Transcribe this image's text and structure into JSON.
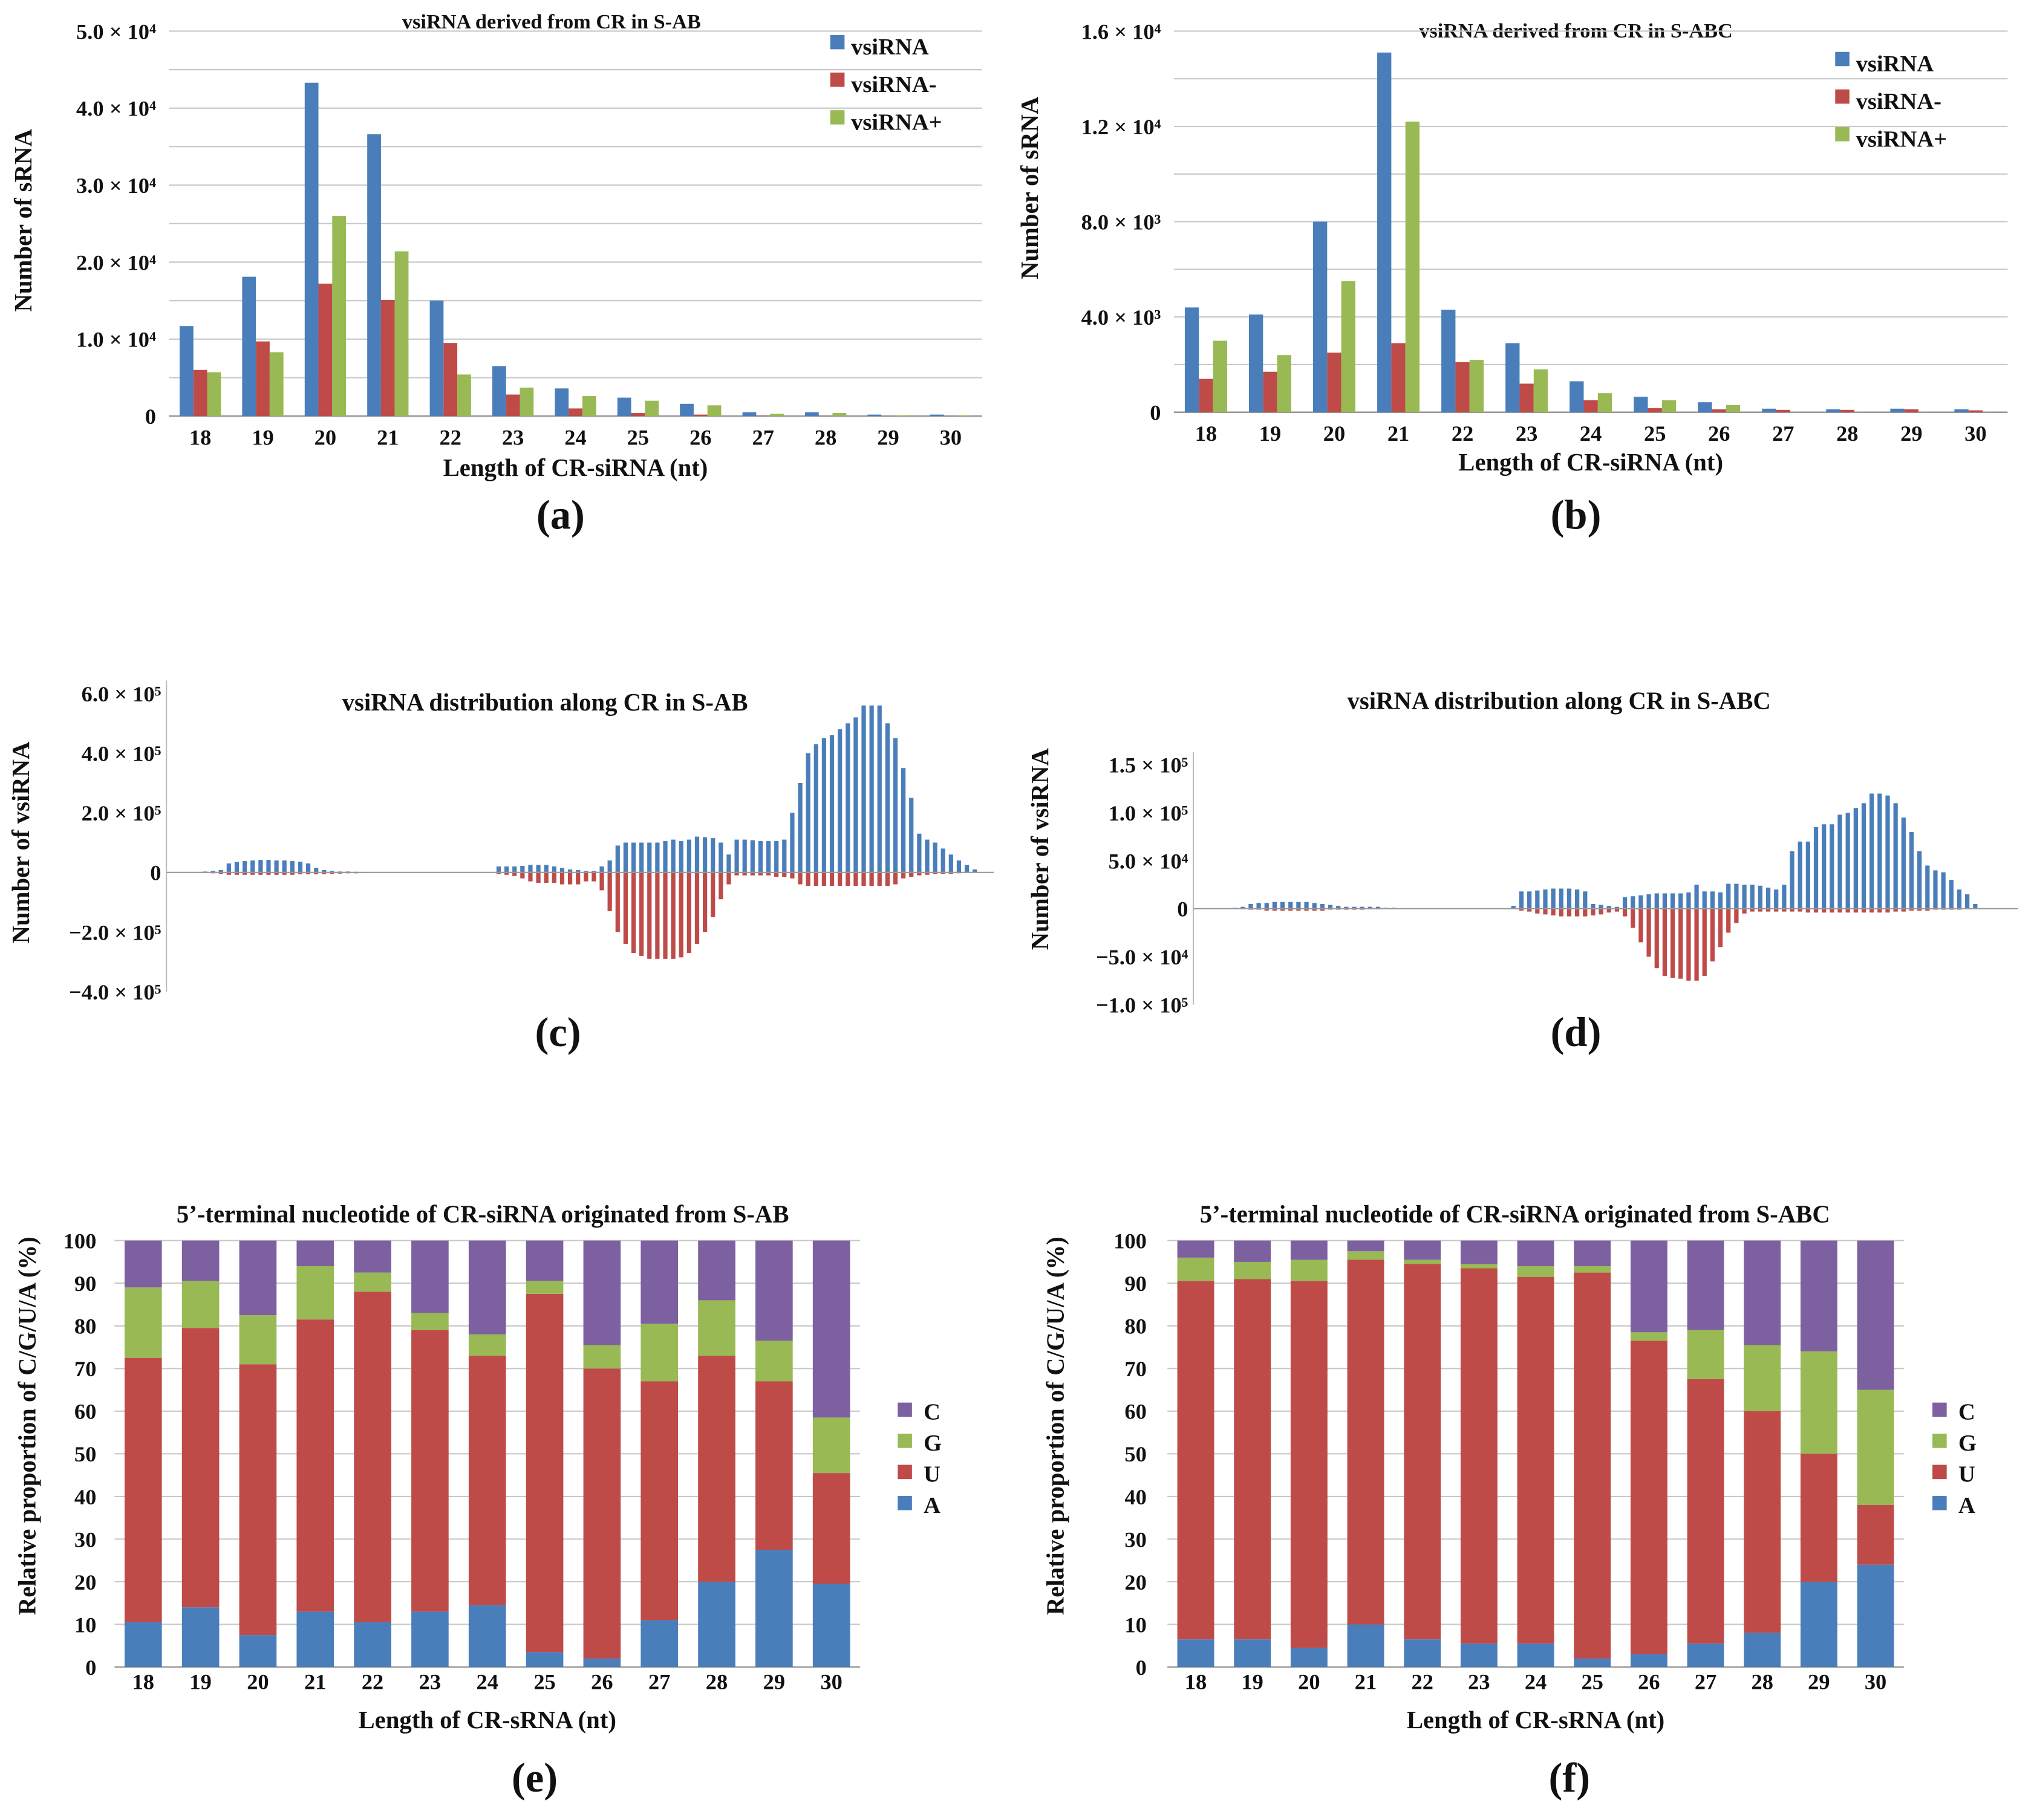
{
  "colors": {
    "blue": "#4a7ebb",
    "red": "#be4b48",
    "green": "#98b954",
    "purple": "#7d60a0",
    "grid": "#c8c8c8"
  },
  "chart_data": [
    {
      "id": "a",
      "type": "bar",
      "panel_label": "(a)",
      "title": "vsiRNA derived from CR in S-AB",
      "xlabel": "Length of CR-siRNA (nt)",
      "ylabel": "Number of sRNA",
      "categories": [
        "18",
        "19",
        "20",
        "21",
        "22",
        "23",
        "24",
        "25",
        "26",
        "27",
        "28",
        "29",
        "30"
      ],
      "ylim": [
        0,
        50000
      ],
      "grid_step": 5000,
      "yticks": [
        0,
        10000,
        20000,
        30000,
        40000,
        50000
      ],
      "ytick_labels": [
        "0",
        "1.0 × 10⁴",
        "2.0 × 10⁴",
        "3.0 × 10⁴",
        "4.0 × 10⁴",
        "5.0 × 10⁴"
      ],
      "legend_position": "top-right",
      "series": [
        {
          "name": "vsiRNA",
          "color": "#4a7ebb",
          "values": [
            11700,
            18100,
            43300,
            36600,
            15000,
            6500,
            3600,
            2400,
            1600,
            500,
            500,
            200,
            200
          ]
        },
        {
          "name": "vsiRNA-",
          "color": "#be4b48",
          "values": [
            6000,
            9700,
            17200,
            15100,
            9500,
            2800,
            1000,
            400,
            200,
            50,
            30,
            20,
            20
          ]
        },
        {
          "name": "vsiRNA+",
          "color": "#98b954",
          "values": [
            5700,
            8300,
            26000,
            21400,
            5400,
            3700,
            2600,
            2000,
            1400,
            300,
            400,
            100,
            100
          ]
        }
      ]
    },
    {
      "id": "b",
      "type": "bar",
      "panel_label": "(b)",
      "title": "vsiRNA derived from CR in S-ABC",
      "xlabel": "Length of CR-siRNA (nt)",
      "ylabel": "Number of sRNA",
      "categories": [
        "18",
        "19",
        "20",
        "21",
        "22",
        "23",
        "24",
        "25",
        "26",
        "27",
        "28",
        "29",
        "30"
      ],
      "ylim": [
        0,
        16000
      ],
      "grid_step": 2000,
      "yticks": [
        0,
        4000,
        8000,
        12000,
        16000
      ],
      "ytick_labels": [
        "0",
        "4.0 × 10³",
        "8.0 × 10³",
        "1.2 × 10⁴",
        "1.6 × 10⁴"
      ],
      "legend_position": "top-right",
      "series": [
        {
          "name": "vsiRNA",
          "color": "#4a7ebb",
          "values": [
            4400,
            4100,
            8000,
            15100,
            4300,
            2900,
            1300,
            650,
            420,
            150,
            120,
            150,
            120
          ]
        },
        {
          "name": "vsiRNA-",
          "color": "#be4b48",
          "values": [
            1400,
            1700,
            2500,
            2900,
            2100,
            1200,
            500,
            170,
            120,
            100,
            100,
            120,
            80
          ]
        },
        {
          "name": "vsiRNA+",
          "color": "#98b954",
          "values": [
            3000,
            2400,
            5500,
            12200,
            2200,
            1800,
            800,
            500,
            300,
            20,
            20,
            20,
            20
          ]
        }
      ]
    },
    {
      "id": "c",
      "type": "bar",
      "panel_label": "(c)",
      "title": "vsiRNA distribution along CR in S-AB",
      "ylabel": "Number of vsiRNA",
      "ylim": [
        -400000,
        600000
      ],
      "yticks": [
        -400000,
        -200000,
        0,
        200000,
        400000,
        600000
      ],
      "ytick_labels": [
        "−4.0 × 10⁵",
        "−2.0 × 10⁵",
        "0",
        "2.0 × 10⁵",
        "4.0 × 10⁵",
        "6.0 × 10⁵"
      ],
      "positive_values_thousands": [
        0,
        3,
        5,
        8,
        30,
        35,
        38,
        40,
        42,
        42,
        40,
        40,
        38,
        36,
        30,
        15,
        8,
        5,
        3,
        3,
        2,
        1,
        0,
        0,
        0,
        0,
        0,
        0,
        0,
        0,
        0,
        0,
        0,
        0,
        0,
        0,
        0,
        0,
        20,
        20,
        20,
        22,
        25,
        25,
        25,
        20,
        15,
        10,
        8,
        5,
        5,
        20,
        40,
        90,
        100,
        100,
        100,
        100,
        100,
        105,
        110,
        105,
        110,
        120,
        118,
        115,
        100,
        60,
        110,
        110,
        108,
        105,
        105,
        105,
        110,
        200,
        300,
        400,
        430,
        450,
        460,
        480,
        500,
        520,
        560,
        560,
        560,
        500,
        450,
        350,
        250,
        130,
        110,
        100,
        80,
        60,
        40,
        25,
        10,
        0
      ],
      "negative_values_thousands": [
        0,
        -2,
        -3,
        -5,
        -8,
        -8,
        -8,
        -8,
        -8,
        -8,
        -8,
        -8,
        -8,
        -6,
        -6,
        -6,
        -6,
        -5,
        -4,
        -3,
        -3,
        -2,
        -1,
        0,
        0,
        0,
        0,
        0,
        0,
        0,
        0,
        0,
        0,
        0,
        0,
        0,
        0,
        0,
        -5,
        -8,
        -12,
        -20,
        -30,
        -35,
        -35,
        -35,
        -40,
        -40,
        -40,
        -30,
        -30,
        -60,
        -130,
        -200,
        -240,
        -270,
        -280,
        -290,
        -290,
        -290,
        -290,
        -285,
        -270,
        -240,
        -200,
        -150,
        -90,
        -40,
        -10,
        -10,
        -10,
        -10,
        -10,
        -15,
        -15,
        -20,
        -40,
        -45,
        -45,
        -45,
        -45,
        -45,
        -45,
        -45,
        -45,
        -45,
        -45,
        -45,
        -40,
        -20,
        -15,
        -10,
        -8,
        -5,
        -5,
        -5,
        -3,
        -2,
        -1,
        0
      ]
    },
    {
      "id": "d",
      "type": "bar",
      "panel_label": "(d)",
      "title": "vsiRNA distribution along CR in S-ABC",
      "ylabel": "Number of vsiRNA",
      "ylim": [
        -100000,
        150000
      ],
      "yticks": [
        -100000,
        -50000,
        0,
        50000,
        100000,
        150000
      ],
      "ytick_labels": [
        "−1.0 × 10⁵",
        "−5.0 × 10⁴",
        "0",
        "5.0 × 10⁴",
        "1.0 × 10⁵",
        "1.5 × 10⁵"
      ],
      "positive_values_thousands": [
        0,
        0,
        1,
        2,
        5,
        6,
        6,
        7,
        7,
        7,
        7,
        7,
        6,
        5,
        4,
        3,
        2,
        2,
        2,
        2,
        2,
        1,
        1,
        0,
        0,
        0,
        0,
        0,
        0,
        0,
        0,
        0,
        0,
        0,
        0,
        0,
        0,
        3,
        18,
        18,
        19,
        20,
        21,
        21,
        21,
        20,
        18,
        5,
        4,
        3,
        2,
        12,
        13,
        14,
        15,
        16,
        16,
        16,
        16,
        17,
        25,
        18,
        18,
        17,
        26,
        26,
        25,
        25,
        24,
        22,
        20,
        25,
        60,
        70,
        70,
        85,
        88,
        88,
        98,
        100,
        105,
        110,
        120,
        120,
        118,
        110,
        95,
        80,
        60,
        45,
        40,
        38,
        30,
        20,
        15,
        5,
        0,
        0,
        0,
        0
      ],
      "negative_values_thousands": [
        0,
        0,
        0,
        0,
        -1,
        -1,
        -2,
        -2,
        -2,
        -2,
        -2,
        -2,
        -2,
        -2,
        -1,
        -1,
        -1,
        -1,
        -1,
        0,
        0,
        0,
        0,
        0,
        0,
        0,
        0,
        0,
        0,
        0,
        0,
        0,
        0,
        0,
        0,
        0,
        0,
        0,
        -2,
        -3,
        -5,
        -6,
        -7,
        -8,
        -8,
        -8,
        -8,
        -7,
        -6,
        -4,
        -3,
        -8,
        -20,
        -35,
        -50,
        -62,
        -70,
        -72,
        -73,
        -75,
        -75,
        -70,
        -55,
        -40,
        -25,
        -15,
        -5,
        -3,
        -3,
        -3,
        -3,
        -3,
        -3,
        -3,
        -4,
        -4,
        -4,
        -4,
        -4,
        -4,
        -4,
        -4,
        -4,
        -4,
        -4,
        -3,
        -3,
        -2,
        -2,
        -2,
        -1,
        -1,
        -1,
        -1,
        0,
        0,
        0,
        0,
        0,
        0
      ]
    },
    {
      "id": "e",
      "type": "bar",
      "stacked": true,
      "panel_label": "(e)",
      "title": "5’-terminal nucleotide of CR-siRNA originated from S-AB",
      "xlabel": "Length of CR-sRNA (nt)",
      "ylabel": "Relative proportion of C/G/U/A (%)",
      "categories": [
        "18",
        "19",
        "20",
        "21",
        "22",
        "23",
        "24",
        "25",
        "26",
        "27",
        "28",
        "29",
        "30"
      ],
      "ylim": [
        0,
        100
      ],
      "yticks": [
        0,
        10,
        20,
        30,
        40,
        50,
        60,
        70,
        80,
        90,
        100
      ],
      "ytick_labels": [
        "0",
        "10",
        "20",
        "30",
        "40",
        "50",
        "60",
        "70",
        "80",
        "90",
        "100"
      ],
      "legend_position": "right",
      "series": [
        {
          "name": "A",
          "color": "#4a7ebb",
          "values": [
            10.5,
            14,
            7.5,
            13,
            10.5,
            13,
            14.5,
            3.5,
            2,
            11,
            20,
            27.5,
            19.5
          ]
        },
        {
          "name": "U",
          "color": "#be4b48",
          "values": [
            62,
            65.5,
            63.5,
            68.5,
            77.5,
            66,
            58.5,
            84,
            68,
            56,
            53,
            39.5,
            26
          ]
        },
        {
          "name": "G",
          "color": "#98b954",
          "values": [
            16.5,
            11,
            11.5,
            12.5,
            4.5,
            4,
            5,
            3,
            5.5,
            13.5,
            13,
            9.5,
            13
          ]
        },
        {
          "name": "C",
          "color": "#7d60a0",
          "values": [
            11,
            9.5,
            17.5,
            6,
            7.5,
            17,
            22,
            9.5,
            24.5,
            19.5,
            14,
            23.5,
            41.5
          ]
        }
      ]
    },
    {
      "id": "f",
      "type": "bar",
      "stacked": true,
      "panel_label": "(f)",
      "title": "5’-terminal nucleotide of CR-siRNA originated from S-ABC",
      "xlabel": "Length of CR-sRNA (nt)",
      "ylabel": "Relative proportion of C/G/U/A (%)",
      "categories": [
        "18",
        "19",
        "20",
        "21",
        "22",
        "23",
        "24",
        "25",
        "26",
        "27",
        "28",
        "29",
        "30"
      ],
      "ylim": [
        0,
        100
      ],
      "yticks": [
        0,
        10,
        20,
        30,
        40,
        50,
        60,
        70,
        80,
        90,
        100
      ],
      "ytick_labels": [
        "0",
        "10",
        "20",
        "30",
        "40",
        "50",
        "60",
        "70",
        "80",
        "90",
        "100"
      ],
      "legend_position": "right",
      "series": [
        {
          "name": "A",
          "color": "#4a7ebb",
          "values": [
            6.5,
            6.5,
            4.5,
            10,
            6.5,
            5.5,
            5.5,
            2,
            3,
            5.5,
            8,
            20,
            24
          ]
        },
        {
          "name": "U",
          "color": "#be4b48",
          "values": [
            84,
            84.5,
            86,
            85.5,
            88,
            88,
            86,
            90.5,
            73.5,
            62,
            52,
            30,
            14
          ]
        },
        {
          "name": "G",
          "color": "#98b954",
          "values": [
            5.5,
            4,
            5,
            2,
            1,
            1,
            2.5,
            1.5,
            2,
            11.5,
            15.5,
            24,
            27
          ]
        },
        {
          "name": "C",
          "color": "#7d60a0",
          "values": [
            4,
            5,
            4.5,
            2.5,
            4.5,
            5.5,
            6,
            6,
            21.5,
            21,
            24.5,
            26,
            35
          ]
        }
      ]
    }
  ]
}
